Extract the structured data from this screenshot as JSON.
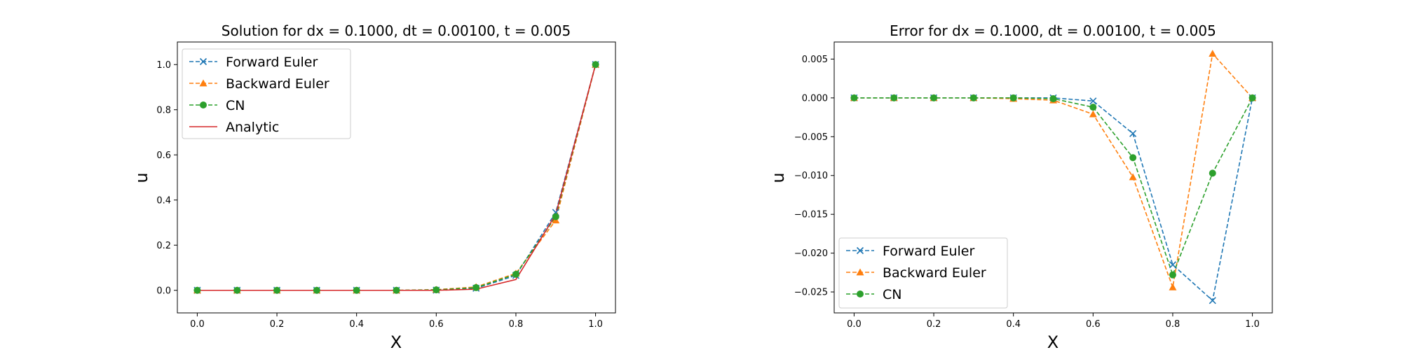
{
  "chart_data": [
    {
      "type": "line",
      "title": "Solution for dx = 0.1000, dt = 0.00100, t = 0.005",
      "xlabel": "X",
      "ylabel": "u",
      "xlim": [
        -0.05,
        1.05
      ],
      "ylim": [
        -0.1,
        1.1
      ],
      "xticks": [
        0.0,
        0.2,
        0.4,
        0.6,
        0.8,
        1.0
      ],
      "yticks": [
        0.0,
        0.2,
        0.4,
        0.6,
        0.8,
        1.0
      ],
      "xtick_labels": [
        "0.0",
        "0.2",
        "0.4",
        "0.6",
        "0.8",
        "1.0"
      ],
      "ytick_labels": [
        "0.0",
        "0.2",
        "0.4",
        "0.6",
        "0.8",
        "1.0"
      ],
      "legend_position": "upper-left",
      "x": [
        0.0,
        0.1,
        0.2,
        0.3,
        0.4,
        0.5,
        0.6,
        0.7,
        0.8,
        0.9,
        1.0
      ],
      "series": [
        {
          "name": "Forward Euler",
          "style": "dashed",
          "marker": "x",
          "color": "#1f77b4",
          "values": [
            0.0,
            0.0,
            0.0,
            0.0,
            0.0,
            0.0,
            0.0005,
            0.009,
            0.066,
            0.345,
            1.0
          ]
        },
        {
          "name": "Backward Euler",
          "style": "dashed",
          "marker": "triangle",
          "color": "#ff7f0e",
          "values": [
            0.0,
            0.0,
            0.0,
            0.0,
            0.0,
            0.0,
            0.003,
            0.015,
            0.075,
            0.31,
            1.0
          ]
        },
        {
          "name": "CN",
          "style": "dashed",
          "marker": "circle",
          "color": "#2ca02c",
          "values": [
            0.0,
            0.0,
            0.0,
            0.0,
            0.0,
            0.0,
            0.002,
            0.012,
            0.071,
            0.326,
            1.0
          ]
        },
        {
          "name": "Analytic",
          "style": "solid",
          "marker": "none",
          "color": "#d62728",
          "values": [
            0.0,
            0.0,
            0.0,
            0.0,
            0.0,
            0.0,
            0.0,
            0.005,
            0.048,
            0.336,
            1.0
          ]
        }
      ]
    },
    {
      "type": "line",
      "title": "Error for dx = 0.1000, dt = 0.00100, t = 0.005",
      "xlabel": "X",
      "ylabel": "u",
      "xlim": [
        -0.05,
        1.05
      ],
      "ylim": [
        -0.0277,
        0.0072
      ],
      "xticks": [
        0.0,
        0.2,
        0.4,
        0.6,
        0.8,
        1.0
      ],
      "yticks": [
        0.005,
        0.0,
        -0.005,
        -0.01,
        -0.015,
        -0.02,
        -0.025
      ],
      "xtick_labels": [
        "0.0",
        "0.2",
        "0.4",
        "0.6",
        "0.8",
        "1.0"
      ],
      "ytick_labels": [
        "0.005",
        "0.000",
        "−0.005",
        "−0.010",
        "−0.015",
        "−0.020",
        "−0.025"
      ],
      "legend_position": "lower-left",
      "x": [
        0.0,
        0.1,
        0.2,
        0.3,
        0.4,
        0.5,
        0.6,
        0.7,
        0.8,
        0.9,
        1.0
      ],
      "series": [
        {
          "name": "Forward Euler",
          "style": "dashed",
          "marker": "x",
          "color": "#1f77b4",
          "values": [
            0.0,
            0.0,
            0.0,
            0.0,
            0.0,
            0.0,
            -0.0004,
            -0.0046,
            -0.0215,
            -0.0261,
            0.0
          ]
        },
        {
          "name": "Backward Euler",
          "style": "dashed",
          "marker": "triangle",
          "color": "#ff7f0e",
          "values": [
            0.0,
            0.0,
            0.0,
            0.0,
            -0.0001,
            -0.0003,
            -0.0021,
            -0.0102,
            -0.0244,
            0.0057,
            0.0
          ]
        },
        {
          "name": "CN",
          "style": "dashed",
          "marker": "circle",
          "color": "#2ca02c",
          "values": [
            0.0,
            0.0,
            0.0,
            0.0,
            0.0,
            -0.0001,
            -0.0012,
            -0.0077,
            -0.0228,
            -0.0097,
            0.0
          ]
        }
      ]
    }
  ]
}
